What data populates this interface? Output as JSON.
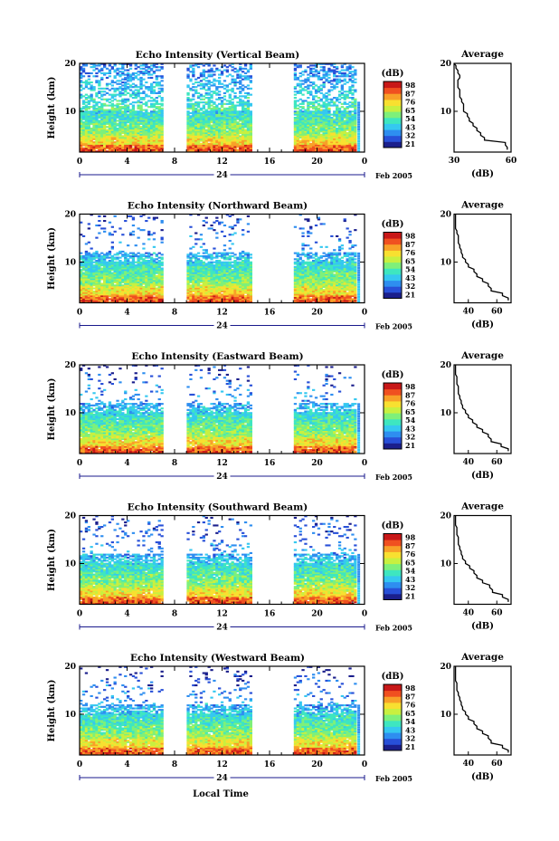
{
  "figure": {
    "x_axis_label": "Local Time",
    "date_label": "Feb 2005",
    "date_tick": "24",
    "colorbar_unit": "(dB)",
    "colorbar_ticks": [
      "21",
      "32",
      "43",
      "54",
      "65",
      "76",
      "87",
      "98"
    ],
    "colorbar_colors": [
      "#1b1f8c",
      "#2850d8",
      "#2e8ef0",
      "#35c8f0",
      "#3ee6c0",
      "#7ef07a",
      "#c8f040",
      "#f8e030",
      "#f8a028",
      "#f05020",
      "#c81818"
    ],
    "profile_title": "Average",
    "profile_xlabel": "(dB)"
  },
  "chart_data": [
    {
      "type": "heatmap",
      "title": "Echo Intensity (Vertical Beam)",
      "ylabel": "Height (km)",
      "xlabel": "Local Time",
      "x_ticks": [
        "0",
        "4",
        "8",
        "12",
        "16",
        "20",
        "0"
      ],
      "xlim": [
        0,
        24
      ],
      "y_ticks": [
        "10",
        "20"
      ],
      "ylim": [
        1.5,
        20
      ],
      "colorbar_range": [
        21,
        98
      ],
      "data_gaps_hours": [
        [
          7.0,
          9.0
        ],
        [
          14.4,
          18.0
        ]
      ],
      "profile": {
        "x_ticks": [
          "30",
          "60"
        ],
        "xlim": [
          30,
          60
        ],
        "height": [
          2,
          3,
          4,
          5,
          6,
          7,
          8,
          9,
          10,
          11,
          12,
          13,
          14,
          15,
          16,
          17,
          18,
          19,
          20
        ],
        "values": [
          58,
          57,
          46,
          44,
          42,
          40,
          38,
          37,
          35,
          35,
          34,
          33,
          33,
          32,
          32,
          33,
          32,
          31,
          30
        ]
      }
    },
    {
      "type": "heatmap",
      "title": "Echo Intensity (Northward Beam)",
      "ylabel": "Height (km)",
      "xlabel": "Local Time",
      "x_ticks": [
        "0",
        "4",
        "8",
        "12",
        "16",
        "20",
        "0"
      ],
      "xlim": [
        0,
        24
      ],
      "y_ticks": [
        "10",
        "20"
      ],
      "ylim": [
        1.5,
        20
      ],
      "colorbar_range": [
        21,
        98
      ],
      "data_gaps_hours": [
        [
          7.0,
          9.0
        ],
        [
          14.4,
          18.0
        ]
      ],
      "profile": {
        "x_ticks": [
          "40",
          "60"
        ],
        "xlim": [
          30,
          70
        ],
        "height": [
          2,
          3,
          4,
          5,
          6,
          7,
          8,
          9,
          10,
          11,
          12,
          13,
          14,
          15,
          16,
          17,
          18,
          19,
          20
        ],
        "values": [
          68,
          64,
          56,
          54,
          50,
          46,
          44,
          40,
          38,
          36,
          35,
          34,
          33,
          33,
          32,
          31,
          31,
          31,
          31
        ]
      }
    },
    {
      "type": "heatmap",
      "title": "Echo Intensity (Eastward Beam)",
      "ylabel": "Height (km)",
      "xlabel": "Local Time",
      "x_ticks": [
        "0",
        "4",
        "8",
        "12",
        "16",
        "20",
        "0"
      ],
      "xlim": [
        0,
        24
      ],
      "y_ticks": [
        "10",
        "20"
      ],
      "ylim": [
        1.5,
        20
      ],
      "colorbar_range": [
        21,
        98
      ],
      "data_gaps_hours": [
        [
          7.0,
          9.0
        ],
        [
          14.4,
          18.0
        ]
      ],
      "profile": {
        "x_ticks": [
          "40",
          "60"
        ],
        "xlim": [
          30,
          70
        ],
        "height": [
          2,
          3,
          4,
          5,
          6,
          7,
          8,
          9,
          10,
          11,
          12,
          13,
          14,
          15,
          16,
          17,
          18,
          19,
          20
        ],
        "values": [
          68,
          63,
          56,
          54,
          50,
          46,
          43,
          40,
          38,
          36,
          35,
          34,
          33,
          33,
          32,
          32,
          31,
          31,
          31
        ]
      }
    },
    {
      "type": "heatmap",
      "title": "Echo Intensity (Southward Beam)",
      "ylabel": "Height (km)",
      "xlabel": "Local Time",
      "x_ticks": [
        "0",
        "4",
        "8",
        "12",
        "16",
        "20",
        "0"
      ],
      "xlim": [
        0,
        24
      ],
      "y_ticks": [
        "10",
        "20"
      ],
      "ylim": [
        1.5,
        20
      ],
      "colorbar_range": [
        21,
        98
      ],
      "data_gaps_hours": [
        [
          7.0,
          9.0
        ],
        [
          14.4,
          18.0
        ]
      ],
      "profile": {
        "x_ticks": [
          "40",
          "60"
        ],
        "xlim": [
          30,
          70
        ],
        "height": [
          2,
          3,
          4,
          5,
          6,
          7,
          8,
          9,
          10,
          11,
          12,
          13,
          14,
          15,
          16,
          17,
          18,
          19,
          20
        ],
        "values": [
          68,
          64,
          57,
          55,
          50,
          46,
          44,
          41,
          38,
          36,
          35,
          34,
          33,
          33,
          32,
          32,
          31,
          31,
          31
        ]
      }
    },
    {
      "type": "heatmap",
      "title": "Echo Intensity (Westward Beam)",
      "ylabel": "Height (km)",
      "xlabel": "Local Time",
      "x_ticks": [
        "0",
        "4",
        "8",
        "12",
        "16",
        "20",
        "0"
      ],
      "xlim": [
        0,
        24
      ],
      "y_ticks": [
        "10",
        "20"
      ],
      "ylim": [
        1.5,
        20
      ],
      "colorbar_range": [
        21,
        98
      ],
      "data_gaps_hours": [
        [
          7.0,
          9.0
        ],
        [
          14.4,
          18.0
        ]
      ],
      "profile": {
        "x_ticks": [
          "40",
          "60"
        ],
        "xlim": [
          30,
          70
        ],
        "height": [
          2,
          3,
          4,
          5,
          6,
          7,
          8,
          9,
          10,
          11,
          12,
          13,
          14,
          15,
          16,
          17,
          18,
          19,
          20
        ],
        "values": [
          68,
          64,
          56,
          54,
          50,
          46,
          44,
          40,
          38,
          36,
          35,
          34,
          33,
          32,
          32,
          31,
          31,
          31,
          31
        ]
      }
    }
  ]
}
